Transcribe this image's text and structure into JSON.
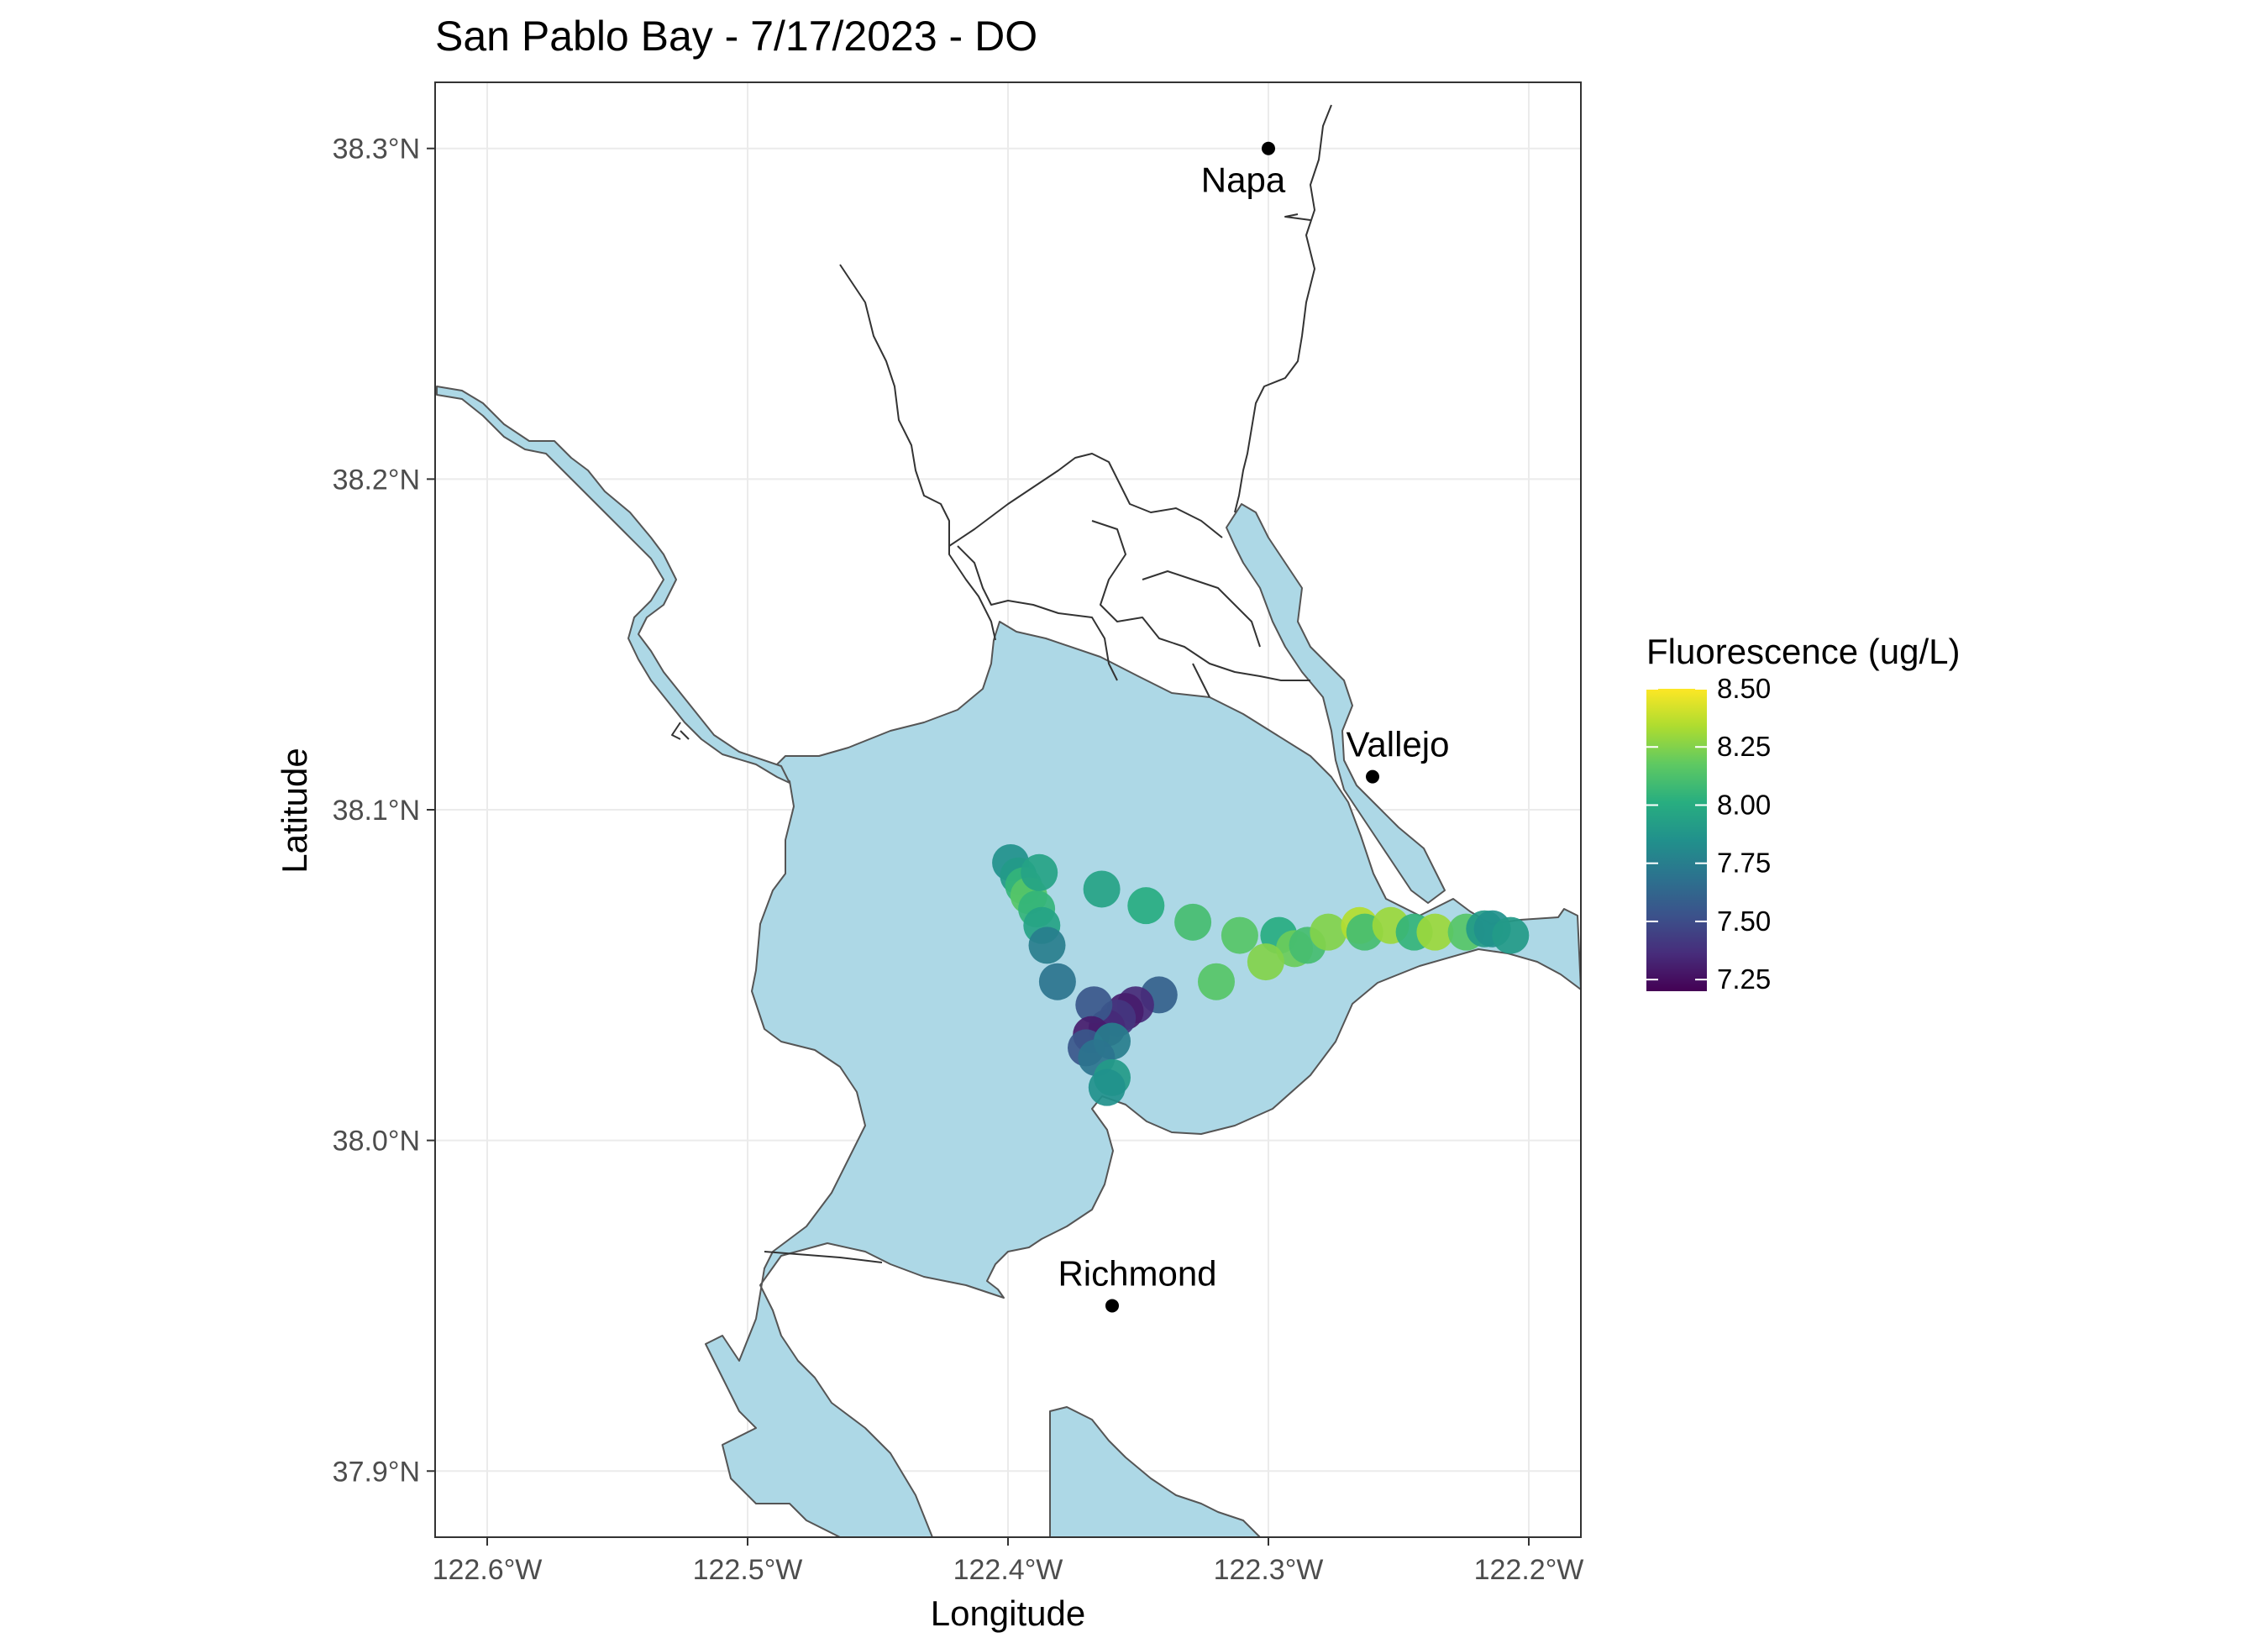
{
  "title": "San Pablo Bay - 7/17/2023 - DO",
  "axes": {
    "xlabel": "Longitude",
    "ylabel": "Latitude",
    "x_ticks": [
      {
        "value": -122.6,
        "label": "122.6°W"
      },
      {
        "value": -122.5,
        "label": "122.5°W"
      },
      {
        "value": -122.4,
        "label": "122.4°W"
      },
      {
        "value": -122.3,
        "label": "122.3°W"
      },
      {
        "value": -122.2,
        "label": "122.2°W"
      }
    ],
    "y_ticks": [
      {
        "value": 37.9,
        "label": "37.9°N"
      },
      {
        "value": 38.0,
        "label": "38.0°N"
      },
      {
        "value": 38.1,
        "label": "38.1°N"
      },
      {
        "value": 38.2,
        "label": "38.2°N"
      },
      {
        "value": 38.3,
        "label": "38.3°N"
      }
    ],
    "xlim": [
      -122.62,
      -122.18
    ],
    "ylim": [
      37.88,
      38.32
    ]
  },
  "cities": [
    {
      "name": "Napa",
      "lon": -122.3,
      "lat": 38.3,
      "label_pos": "below-left"
    },
    {
      "name": "Vallejo",
      "lon": -122.26,
      "lat": 38.11,
      "label_pos": "above"
    },
    {
      "name": "Richmond",
      "lon": -122.36,
      "lat": 37.95,
      "label_pos": "above"
    }
  ],
  "legend": {
    "title": "Fluorescence (ug/L)",
    "placement": "right",
    "min": 7.2,
    "max": 8.5,
    "ticks": [
      {
        "value": 8.5,
        "label": "8.50"
      },
      {
        "value": 8.25,
        "label": "8.25"
      },
      {
        "value": 8.0,
        "label": "8.00"
      },
      {
        "value": 7.75,
        "label": "7.75"
      },
      {
        "value": 7.5,
        "label": "7.50"
      },
      {
        "value": 7.25,
        "label": "7.25"
      }
    ],
    "palette": [
      "#440154",
      "#472d7b",
      "#3b528b",
      "#2c728e",
      "#21918c",
      "#28ae80",
      "#5ec962",
      "#addc30",
      "#fde725"
    ]
  },
  "colors": {
    "water": "#add8e6",
    "coast": "#555555",
    "grid": "#ebebeb",
    "panel_border": "#333333"
  },
  "chart_data": {
    "type": "scatter",
    "title": "San Pablo Bay - 7/17/2023 - DO",
    "xlabel": "Longitude",
    "ylabel": "Latitude",
    "xlim": [
      -122.62,
      -122.18
    ],
    "ylim": [
      37.88,
      38.32
    ],
    "color_variable": "Fluorescence (ug/L)",
    "points": [
      {
        "lon": -122.399,
        "lat": 38.084,
        "value": 7.85
      },
      {
        "lon": -122.396,
        "lat": 38.08,
        "value": 7.9
      },
      {
        "lon": -122.394,
        "lat": 38.077,
        "value": 8.05
      },
      {
        "lon": -122.392,
        "lat": 38.074,
        "value": 8.15
      },
      {
        "lon": -122.389,
        "lat": 38.07,
        "value": 8.05
      },
      {
        "lon": -122.387,
        "lat": 38.065,
        "value": 7.95
      },
      {
        "lon": -122.385,
        "lat": 38.059,
        "value": 7.75
      },
      {
        "lon": -122.381,
        "lat": 38.048,
        "value": 7.7
      },
      {
        "lon": -122.388,
        "lat": 38.081,
        "value": 7.95
      },
      {
        "lon": -122.364,
        "lat": 38.076,
        "value": 7.95
      },
      {
        "lon": -122.347,
        "lat": 38.071,
        "value": 8.0
      },
      {
        "lon": -122.329,
        "lat": 38.066,
        "value": 8.1
      },
      {
        "lon": -122.311,
        "lat": 38.062,
        "value": 8.15
      },
      {
        "lon": -122.296,
        "lat": 38.062,
        "value": 8.0
      },
      {
        "lon": -122.29,
        "lat": 38.058,
        "value": 8.2
      },
      {
        "lon": -122.285,
        "lat": 38.059,
        "value": 8.1
      },
      {
        "lon": -122.277,
        "lat": 38.063,
        "value": 8.25
      },
      {
        "lon": -122.265,
        "lat": 38.065,
        "value": 8.35
      },
      {
        "lon": -122.263,
        "lat": 38.063,
        "value": 8.1
      },
      {
        "lon": -122.253,
        "lat": 38.065,
        "value": 8.3
      },
      {
        "lon": -122.244,
        "lat": 38.063,
        "value": 8.05
      },
      {
        "lon": -122.236,
        "lat": 38.063,
        "value": 8.3
      },
      {
        "lon": -122.224,
        "lat": 38.063,
        "value": 8.15
      },
      {
        "lon": -122.217,
        "lat": 38.064,
        "value": 7.9
      },
      {
        "lon": -122.214,
        "lat": 38.064,
        "value": 7.85
      },
      {
        "lon": -122.207,
        "lat": 38.062,
        "value": 7.9
      },
      {
        "lon": -122.301,
        "lat": 38.054,
        "value": 8.25
      },
      {
        "lon": -122.32,
        "lat": 38.048,
        "value": 8.15
      },
      {
        "lon": -122.342,
        "lat": 38.044,
        "value": 7.6
      },
      {
        "lon": -122.351,
        "lat": 38.041,
        "value": 7.35
      },
      {
        "lon": -122.355,
        "lat": 38.039,
        "value": 7.3
      },
      {
        "lon": -122.358,
        "lat": 38.037,
        "value": 7.4
      },
      {
        "lon": -122.362,
        "lat": 38.034,
        "value": 7.35
      },
      {
        "lon": -122.367,
        "lat": 38.041,
        "value": 7.55
      },
      {
        "lon": -122.368,
        "lat": 38.032,
        "value": 7.3
      },
      {
        "lon": -122.37,
        "lat": 38.028,
        "value": 7.55
      },
      {
        "lon": -122.36,
        "lat": 38.03,
        "value": 7.75
      },
      {
        "lon": -122.366,
        "lat": 38.025,
        "value": 7.7
      },
      {
        "lon": -122.36,
        "lat": 38.019,
        "value": 7.9
      },
      {
        "lon": -122.362,
        "lat": 38.016,
        "value": 7.85
      }
    ]
  }
}
